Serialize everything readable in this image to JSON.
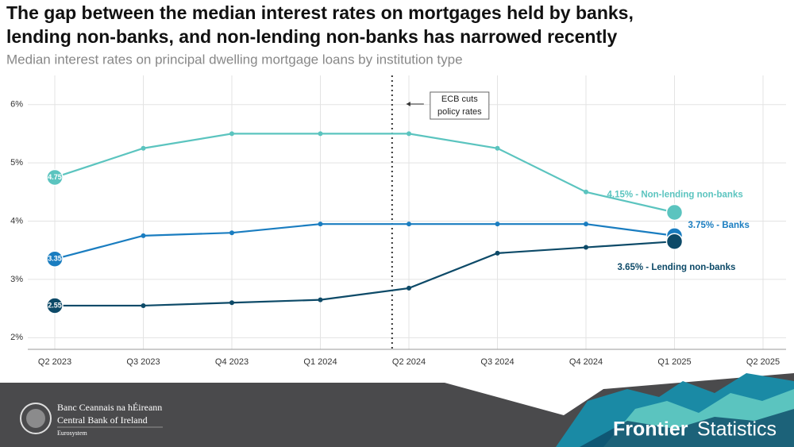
{
  "chart_data": {
    "type": "line",
    "title": "The gap between the median interest rates on mortgages held by banks,",
    "title_line2": "lending non-banks, and non-lending non-banks has narrowed recently",
    "subtitle": "Median interest rates on principal dwelling mortgage loans by institution type",
    "categories": [
      "Q2 2023",
      "Q3 2023",
      "Q4 2023",
      "Q1 2024",
      "Q2 2024",
      "Q3 2024",
      "Q4 2024",
      "Q1 2025",
      "Q2 2025"
    ],
    "series": [
      {
        "name": "Non-lending non-banks",
        "color": "#5bc4bf",
        "values": [
          4.75,
          5.25,
          5.5,
          5.5,
          5.5,
          5.25,
          4.5,
          4.15,
          null
        ],
        "end_label": "4.15% - Non-lending non-banks"
      },
      {
        "name": "Banks",
        "color": "#1a7dc0",
        "values": [
          3.35,
          3.75,
          3.8,
          3.95,
          3.95,
          3.95,
          3.95,
          3.75,
          null
        ],
        "end_label": "3.75% - Banks"
      },
      {
        "name": "Lending non-banks",
        "color": "#0d4a68",
        "values": [
          2.55,
          2.55,
          2.6,
          2.65,
          2.85,
          3.45,
          3.55,
          3.65,
          null
        ],
        "end_label": "3.65% - Lending non-banks"
      }
    ],
    "ylim": [
      1.8,
      6.5
    ],
    "yticks": [
      {
        "value": 2,
        "label": "2%"
      },
      {
        "value": 3,
        "label": "3%"
      },
      {
        "value": 4,
        "label": "4%"
      },
      {
        "value": 5,
        "label": "5%"
      },
      {
        "value": 6,
        "label": "6%"
      }
    ],
    "grid": true,
    "annotation": {
      "line1": "ECB cuts",
      "line2": "policy rates"
    }
  },
  "footer": {
    "bank_irish": "Banc Ceannais na hÉireann",
    "bank_english": "Central Bank of Ireland",
    "eurosystem": "Eurosystem",
    "brand_bold": "Frontier",
    "brand_light": "Statistics"
  }
}
